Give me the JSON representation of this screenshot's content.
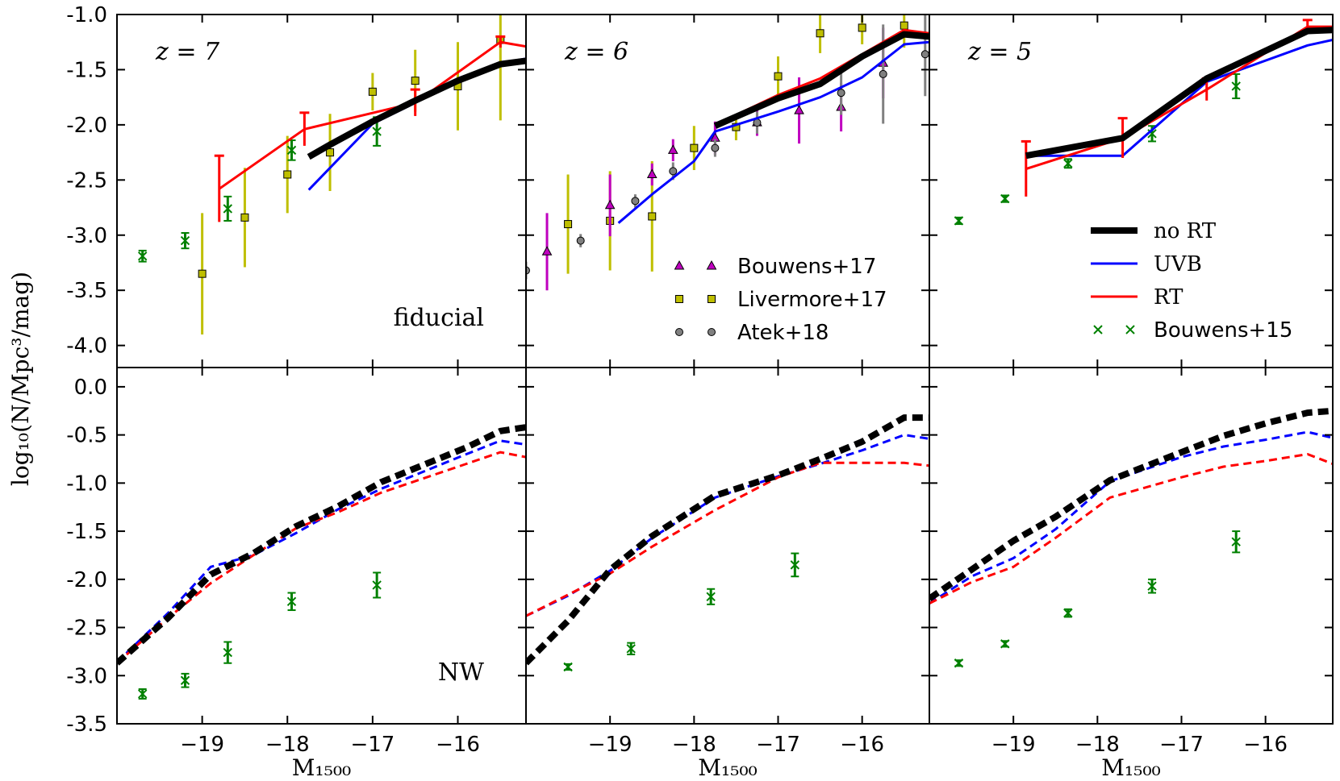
{
  "chart_data": {
    "type": "line",
    "ylabel": "log₁₀(N/Mpc³/mag)",
    "xlabel": "M₁₅₀₀",
    "xlim": [
      -20.0,
      -15.2
    ],
    "xticks": [
      -19,
      -18,
      -17,
      -16
    ],
    "xtick_labels": [
      "−19",
      "−18",
      "−17",
      "−16"
    ],
    "top_ylim": [
      -4.2,
      -1.0
    ],
    "top_yticks": [
      -4.0,
      -3.5,
      -3.0,
      -2.5,
      -2.0,
      -1.5,
      -1.0
    ],
    "top_ytick_labels": [
      "-4.0",
      "-3.5",
      "-3.0",
      "-2.5",
      "-2.0",
      "-1.5",
      "-1.0"
    ],
    "bottom_ylim": [
      -3.5,
      0.2
    ],
    "bottom_yticks": [
      -3.5,
      -3.0,
      -2.5,
      -2.0,
      -1.5,
      -1.0,
      -0.5,
      0.0
    ],
    "bottom_ytick_labels": [
      "-3.5",
      "-3.0",
      "-2.5",
      "-2.0",
      "-1.5",
      "-1.0",
      "-0.5",
      "0.0"
    ],
    "colors": {
      "noRT": "#000000",
      "UVB": "#0000ff",
      "RT": "#ff0000",
      "bouwens15": "#008000",
      "bouwens17": "#bf00bf",
      "livermore17": "#bfbf00",
      "atek18": "#808080"
    },
    "legend_right": [
      {
        "key": "noRT",
        "label": "no RT"
      },
      {
        "key": "UVB",
        "label": "UVB"
      },
      {
        "key": "RT",
        "label": "RT"
      },
      {
        "key": "bouwens15",
        "label": "Bouwens+15"
      }
    ],
    "legend_mid": [
      {
        "key": "bouwens17",
        "label": "Bouwens+17"
      },
      {
        "key": "livermore17",
        "label": "Livermore+17"
      },
      {
        "key": "atek18",
        "label": "Atek+18"
      }
    ],
    "panels": [
      {
        "row": "top",
        "col": 0,
        "z_label": "z = 7",
        "corner_label": "fiducial",
        "series": [
          {
            "name": "no RT",
            "key": "noRT",
            "style": "thick",
            "x": [
              -17.75,
              -17.5,
              -17.0,
              -16.5,
              -16.0,
              -15.5,
              -15.2
            ],
            "y": [
              -2.29,
              -2.18,
              -1.97,
              -1.78,
              -1.6,
              -1.45,
              -1.42
            ]
          },
          {
            "name": "UVB",
            "key": "UVB",
            "style": "solid",
            "x": [
              -17.75,
              -17.0,
              -16.5,
              -16.0,
              -15.5,
              -15.2
            ],
            "y": [
              -2.59,
              -1.99,
              -1.8,
              -1.58,
              -1.44,
              -1.4
            ]
          },
          {
            "name": "RT",
            "key": "RT",
            "style": "solid",
            "x": [
              -18.8,
              -17.8,
              -16.5,
              -15.5,
              -15.2
            ],
            "y": [
              -2.58,
              -2.04,
              -1.8,
              -1.25,
              -1.29
            ],
            "yerr": [
              0.3,
              0.15,
              0.12,
              0.05,
              0
            ]
          }
        ],
        "bouwens15": {
          "x": [
            -19.7,
            -19.2,
            -18.7,
            -17.95,
            -16.95
          ],
          "y": [
            -3.19,
            -3.05,
            -2.76,
            -2.23,
            -2.06
          ],
          "yerr": [
            0.05,
            0.07,
            0.11,
            0.09,
            0.13
          ]
        },
        "livermore17": {
          "x": [
            -19.0,
            -18.5,
            -18.0,
            -17.5,
            -17.0,
            -16.5,
            -16.0,
            -15.5
          ],
          "y": [
            -3.35,
            -2.84,
            -2.45,
            -2.25,
            -1.7,
            -1.6,
            -1.65,
            -1.23
          ],
          "yerr": [
            0.55,
            0.45,
            0.35,
            0.35,
            0.17,
            0.28,
            0.4,
            0.73
          ]
        }
      },
      {
        "row": "top",
        "col": 1,
        "z_label": "z = 6",
        "series": [
          {
            "name": "no RT",
            "key": "noRT",
            "style": "thick",
            "x": [
              -17.75,
              -17.0,
              -16.5,
              -16.0,
              -15.5,
              -15.2
            ],
            "y": [
              -2.01,
              -1.76,
              -1.63,
              -1.38,
              -1.18,
              -1.2
            ]
          },
          {
            "name": "UVB",
            "key": "UVB",
            "style": "solid",
            "x": [
              -18.9,
              -18.5,
              -18.0,
              -17.75,
              -17.0,
              -16.5,
              -16.0,
              -15.5,
              -15.2
            ],
            "y": [
              -2.89,
              -2.63,
              -2.33,
              -2.06,
              -1.88,
              -1.75,
              -1.57,
              -1.27,
              -1.25
            ]
          },
          {
            "name": "RT",
            "key": "RT",
            "style": "solid",
            "x": [
              -17.75,
              -17.0,
              -16.5,
              -16.0,
              -15.5,
              -15.2
            ],
            "y": [
              -2.0,
              -1.73,
              -1.58,
              -1.36,
              -1.14,
              -1.17
            ]
          }
        ],
        "bouwens17": {
          "x": [
            -19.75,
            -19.0,
            -18.5,
            -18.25,
            -17.75,
            -17.25,
            -16.75,
            -16.25,
            -15.75
          ],
          "y": [
            -3.15,
            -2.73,
            -2.45,
            -2.23,
            -2.12,
            -1.98,
            -1.87,
            -1.84,
            -1.44
          ],
          "yerr": [
            0.35,
            0.28,
            0.1,
            0.1,
            0.15,
            0.12,
            0.3,
            0.22,
            0.32
          ]
        },
        "livermore17": {
          "x": [
            -19.5,
            -19.0,
            -18.5,
            -18.0,
            -17.5,
            -17.0,
            -16.5,
            -16.0,
            -15.5
          ],
          "y": [
            -2.9,
            -2.87,
            -2.83,
            -2.21,
            -2.02,
            -1.56,
            -1.17,
            -1.12,
            -1.1
          ],
          "yerr": [
            0.45,
            0.45,
            0.5,
            0.2,
            0.12,
            0.18,
            0.18,
            0.15,
            0.2
          ]
        },
        "atek18": {
          "x": [
            -20.0,
            -19.35,
            -18.7,
            -18.25,
            -17.75,
            -17.25,
            -16.25,
            -15.75,
            -15.25
          ],
          "y": [
            -3.32,
            -3.05,
            -2.69,
            -2.42,
            -2.21,
            -1.98,
            -1.71,
            -1.54,
            -1.36
          ],
          "yerr": [
            0.08,
            0.06,
            0.06,
            0.08,
            0.08,
            0.1,
            0.2,
            0.45,
            0.38
          ]
        }
      },
      {
        "row": "top",
        "col": 2,
        "z_label": "z = 5",
        "series": [
          {
            "name": "no RT",
            "key": "noRT",
            "style": "thick",
            "x": [
              -18.85,
              -17.7,
              -16.7,
              -15.5,
              -15.2
            ],
            "y": [
              -2.28,
              -2.12,
              -1.58,
              -1.15,
              -1.14
            ]
          },
          {
            "name": "UVB",
            "key": "UVB",
            "style": "solid",
            "x": [
              -18.85,
              -17.7,
              -16.7,
              -15.5,
              -15.2
            ],
            "y": [
              -2.28,
              -2.28,
              -1.61,
              -1.28,
              -1.23
            ]
          },
          {
            "name": "RT",
            "key": "RT",
            "style": "solid",
            "x": [
              -18.85,
              -17.7,
              -16.7,
              -15.5,
              -15.2
            ],
            "y": [
              -2.4,
              -2.12,
              -1.68,
              -1.11,
              -1.11
            ],
            "yerr": [
              0.25,
              0.18,
              0.1,
              0.06,
              0
            ]
          }
        ],
        "bouwens15": {
          "x": [
            -19.65,
            -19.1,
            -18.35,
            -17.35,
            -16.35
          ],
          "y": [
            -2.87,
            -2.67,
            -2.35,
            -2.08,
            -1.65
          ],
          "yerr": [
            0.03,
            0.03,
            0.04,
            0.07,
            0.11
          ]
        }
      },
      {
        "row": "bottom",
        "col": 0,
        "corner_label": "NW",
        "series": [
          {
            "name": "no RT",
            "key": "noRT",
            "style": "thick-dash",
            "x": [
              -20.0,
              -19.4,
              -18.9,
              -18.4,
              -17.9,
              -17.4,
              -16.9,
              -16.4,
              -15.9,
              -15.5,
              -15.2
            ],
            "y": [
              -2.87,
              -2.4,
              -1.95,
              -1.73,
              -1.45,
              -1.24,
              -0.99,
              -0.81,
              -0.63,
              -0.46,
              -0.42
            ]
          },
          {
            "name": "UVB",
            "key": "UVB",
            "style": "dash",
            "x": [
              -20.0,
              -19.4,
              -18.9,
              -18.4,
              -17.9,
              -17.4,
              -16.9,
              -16.4,
              -15.9,
              -15.5,
              -15.2
            ],
            "y": [
              -2.86,
              -2.35,
              -1.87,
              -1.75,
              -1.52,
              -1.27,
              -1.06,
              -0.88,
              -0.7,
              -0.56,
              -0.6
            ]
          },
          {
            "name": "RT",
            "key": "RT",
            "style": "dash",
            "x": [
              -20.0,
              -19.4,
              -18.9,
              -18.4,
              -17.9,
              -17.4,
              -16.9,
              -16.4,
              -15.9,
              -15.5,
              -15.2
            ],
            "y": [
              -2.87,
              -2.4,
              -2.04,
              -1.75,
              -1.47,
              -1.3,
              -1.1,
              -0.95,
              -0.8,
              -0.68,
              -0.73
            ]
          }
        ],
        "bouwens15": {
          "x": [
            -19.7,
            -19.2,
            -18.7,
            -17.95,
            -16.95
          ],
          "y": [
            -3.19,
            -3.05,
            -2.76,
            -2.23,
            -2.06
          ],
          "yerr": [
            0.05,
            0.07,
            0.11,
            0.09,
            0.13
          ]
        }
      },
      {
        "row": "bottom",
        "col": 1,
        "series": [
          {
            "name": "no RT",
            "key": "noRT",
            "style": "thick-dash",
            "x": [
              -20.0,
              -19.5,
              -19.0,
              -18.5,
              -17.75,
              -17.0,
              -16.5,
              -16.0,
              -15.5,
              -15.2
            ],
            "y": [
              -2.87,
              -2.43,
              -1.9,
              -1.55,
              -1.13,
              -0.92,
              -0.75,
              -0.57,
              -0.32,
              -0.32
            ]
          },
          {
            "name": "UVB",
            "key": "UVB",
            "style": "dash",
            "x": [
              -20.0,
              -19.5,
              -19.0,
              -18.5,
              -17.75,
              -17.0,
              -16.5,
              -16.0,
              -15.5,
              -15.2
            ],
            "y": [
              -2.38,
              -2.17,
              -1.91,
              -1.57,
              -1.15,
              -0.93,
              -0.8,
              -0.66,
              -0.5,
              -0.54
            ]
          },
          {
            "name": "RT",
            "key": "RT",
            "style": "dash",
            "x": [
              -20.0,
              -19.5,
              -19.0,
              -18.5,
              -17.75,
              -17.0,
              -16.5,
              -16.0,
              -15.5,
              -15.2
            ],
            "y": [
              -2.38,
              -2.16,
              -1.94,
              -1.66,
              -1.28,
              -0.94,
              -0.79,
              -0.79,
              -0.79,
              -0.82
            ]
          }
        ],
        "bouwens15": {
          "x": [
            -19.5,
            -18.75,
            -17.8,
            -16.8
          ],
          "y": [
            -2.91,
            -2.72,
            -2.18,
            -1.85
          ],
          "yerr": [
            0.03,
            0.06,
            0.08,
            0.12
          ]
        }
      },
      {
        "row": "bottom",
        "col": 2,
        "series": [
          {
            "name": "no RT",
            "key": "noRT",
            "style": "thick-dash",
            "x": [
              -20.0,
              -19.5,
              -19.0,
              -18.5,
              -17.85,
              -17.0,
              -16.5,
              -16.0,
              -15.5,
              -15.2
            ],
            "y": [
              -2.2,
              -1.9,
              -1.6,
              -1.35,
              -0.97,
              -0.68,
              -0.51,
              -0.38,
              -0.27,
              -0.25
            ]
          },
          {
            "name": "UVB",
            "key": "UVB",
            "style": "dash",
            "x": [
              -20.0,
              -19.5,
              -19.0,
              -18.5,
              -17.85,
              -17.0,
              -16.5,
              -16.0,
              -15.5,
              -15.2
            ],
            "y": [
              -2.25,
              -1.97,
              -1.78,
              -1.48,
              -0.98,
              -0.73,
              -0.62,
              -0.55,
              -0.47,
              -0.53
            ]
          },
          {
            "name": "RT",
            "key": "RT",
            "style": "dash",
            "x": [
              -20.0,
              -19.5,
              -19.0,
              -18.5,
              -17.85,
              -17.0,
              -16.5,
              -16.0,
              -15.5,
              -15.2
            ],
            "y": [
              -2.25,
              -2.03,
              -1.87,
              -1.57,
              -1.15,
              -0.94,
              -0.83,
              -0.77,
              -0.7,
              -0.8
            ]
          }
        ],
        "bouwens15": {
          "x": [
            -19.65,
            -19.1,
            -18.35,
            -17.35,
            -16.35
          ],
          "y": [
            -2.87,
            -2.67,
            -2.35,
            -2.07,
            -1.61
          ],
          "yerr": [
            0.03,
            0.03,
            0.04,
            0.07,
            0.11
          ]
        }
      }
    ]
  }
}
